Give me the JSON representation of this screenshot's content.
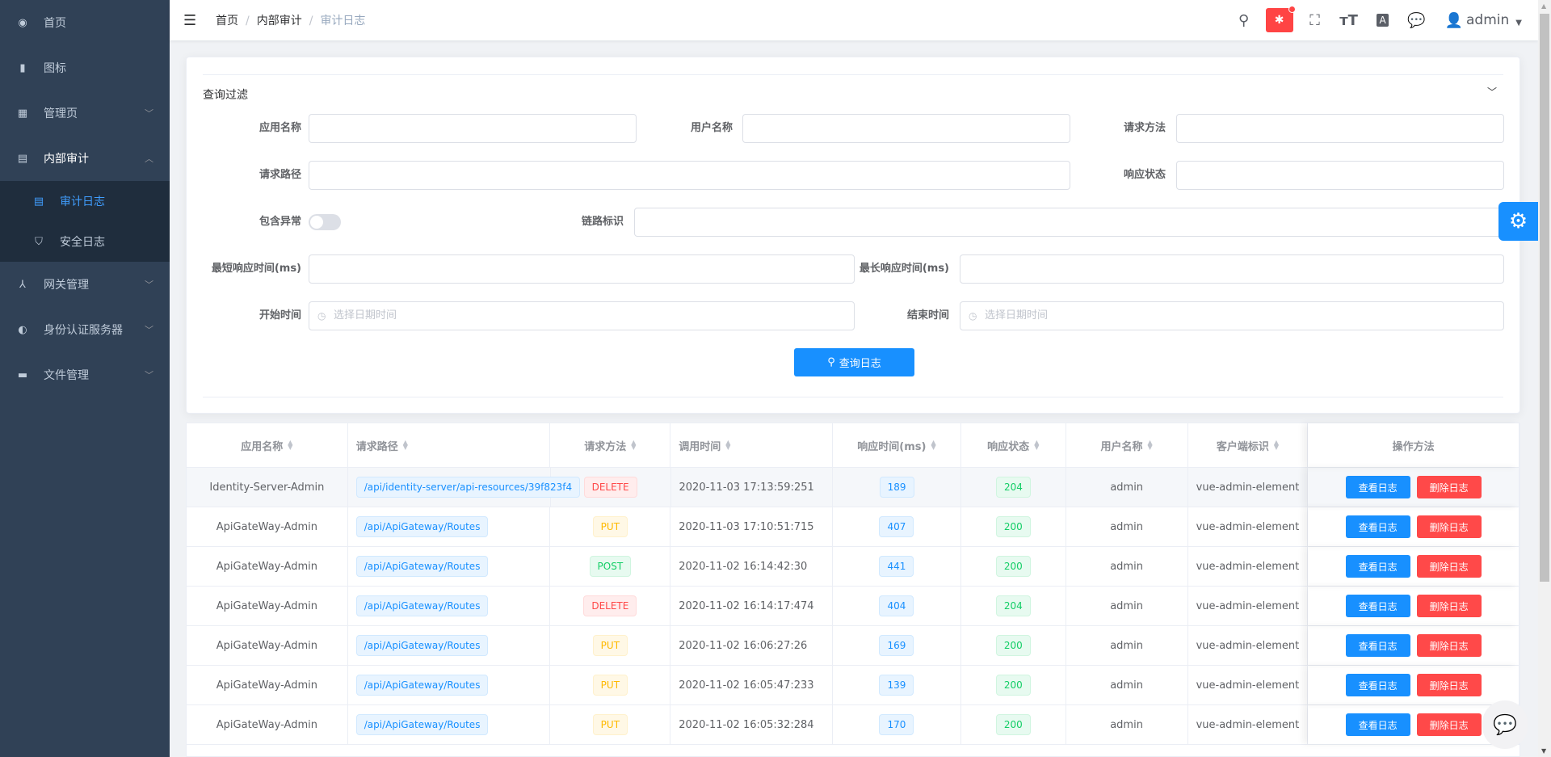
{
  "sidebar": {
    "items": [
      {
        "label": "首页",
        "icon": "dashboard-icon",
        "glyph": "◉"
      },
      {
        "label": "图标",
        "icon": "icon-book-icon",
        "glyph": "▮"
      },
      {
        "label": "管理页",
        "icon": "grid-icon",
        "glyph": "▦",
        "chevron": "﹀"
      },
      {
        "label": "内部审计",
        "icon": "audit-icon",
        "glyph": "▤",
        "chevron": "︿"
      },
      {
        "label": "网关管理",
        "icon": "gateway-icon",
        "glyph": "⅄",
        "chevron": "﹀"
      },
      {
        "label": "身份认证服务器",
        "icon": "identity-icon",
        "glyph": "◐",
        "chevron": "﹀"
      },
      {
        "label": "文件管理",
        "icon": "folder-icon",
        "glyph": "▬",
        "chevron": "﹀"
      }
    ],
    "sub": [
      {
        "label": "审计日志",
        "glyph": "▤"
      },
      {
        "label": "安全日志",
        "glyph": "⛉"
      }
    ]
  },
  "header": {
    "breadcrumb": [
      "首页",
      "内部审计",
      "审计日志"
    ],
    "user": "admin"
  },
  "filter": {
    "title": "查询过滤",
    "labels": {
      "app": "应用名称",
      "user": "用户名称",
      "method": "请求方法",
      "path": "请求路径",
      "status": "响应状态",
      "exception": "包含异常",
      "trace": "链路标识",
      "min": "最短响应时间(ms)",
      "max": "最长响应时间(ms)",
      "start": "开始时间",
      "end": "结束时间"
    },
    "date_placeholder": "选择日期时间",
    "include_exception": false,
    "search_button": "查询日志"
  },
  "colors": {
    "primary": "#1890ff",
    "danger": "#ff4949",
    "sidebar": "#304156"
  },
  "table": {
    "columns": [
      "应用名称",
      "请求路径",
      "请求方法",
      "调用时间",
      "响应时间(ms)",
      "响应状态",
      "用户名称",
      "客户端标识",
      "操作方法"
    ],
    "actions": {
      "view": "查看日志",
      "delete": "删除日志"
    },
    "rows": [
      [
        "Identity-Server-Admin",
        "/api/identity-server/api-resources/39f823f4",
        "DELETE",
        "2020-11-03 17:13:59:251",
        "189",
        "204",
        "admin",
        "vue-admin-element"
      ],
      [
        "ApiGateWay-Admin",
        "/api/ApiGateway/Routes",
        "PUT",
        "2020-11-03 17:10:51:715",
        "407",
        "200",
        "admin",
        "vue-admin-element"
      ],
      [
        "ApiGateWay-Admin",
        "/api/ApiGateway/Routes",
        "POST",
        "2020-11-02 16:14:42:30",
        "441",
        "200",
        "admin",
        "vue-admin-element"
      ],
      [
        "ApiGateWay-Admin",
        "/api/ApiGateway/Routes",
        "DELETE",
        "2020-11-02 16:14:17:474",
        "404",
        "204",
        "admin",
        "vue-admin-element"
      ],
      [
        "ApiGateWay-Admin",
        "/api/ApiGateway/Routes",
        "PUT",
        "2020-11-02 16:06:27:26",
        "169",
        "200",
        "admin",
        "vue-admin-element"
      ],
      [
        "ApiGateWay-Admin",
        "/api/ApiGateway/Routes",
        "PUT",
        "2020-11-02 16:05:47:233",
        "139",
        "200",
        "admin",
        "vue-admin-element"
      ],
      [
        "ApiGateWay-Admin",
        "/api/ApiGateway/Routes",
        "PUT",
        "2020-11-02 16:05:32:284",
        "170",
        "200",
        "admin",
        "vue-admin-element"
      ]
    ]
  }
}
